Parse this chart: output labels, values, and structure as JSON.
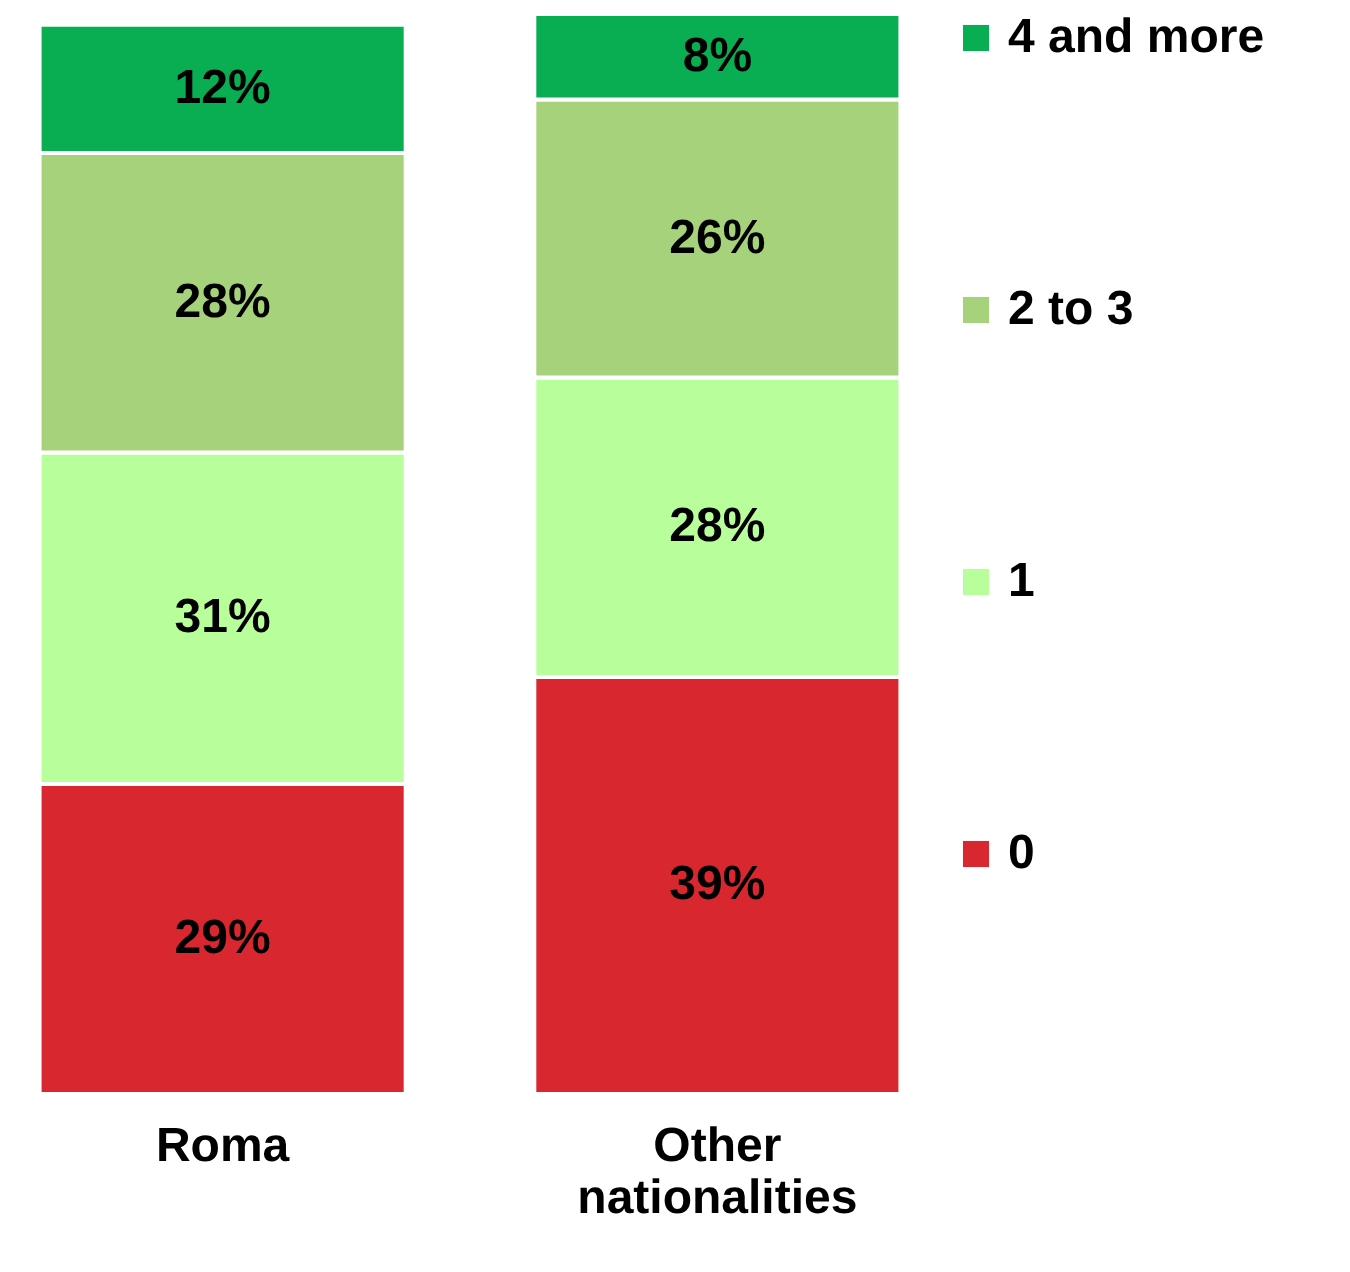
{
  "chart_data": {
    "type": "bar",
    "stacked": true,
    "categories": [
      "Roma",
      "Other nationalities"
    ],
    "ylim": [
      0,
      101
    ],
    "tick_labels": "x",
    "legend": "right",
    "series": [
      {
        "name": "0",
        "color": "#d9272f",
        "values": [
          29,
          39
        ],
        "value_labels": [
          "29%",
          "39%"
        ]
      },
      {
        "name": "1",
        "color": "#b8ff9c",
        "values": [
          31,
          28
        ],
        "value_labels": [
          "31%",
          "28%"
        ]
      },
      {
        "name": "2 to 3",
        "color": "#a5d27b",
        "values": [
          28,
          26
        ],
        "value_labels": [
          "28%",
          "26%"
        ]
      },
      {
        "name": "4 and more",
        "color": "#0aae52",
        "values": [
          12,
          8
        ],
        "value_labels": [
          "12%",
          "8%"
        ]
      }
    ]
  }
}
